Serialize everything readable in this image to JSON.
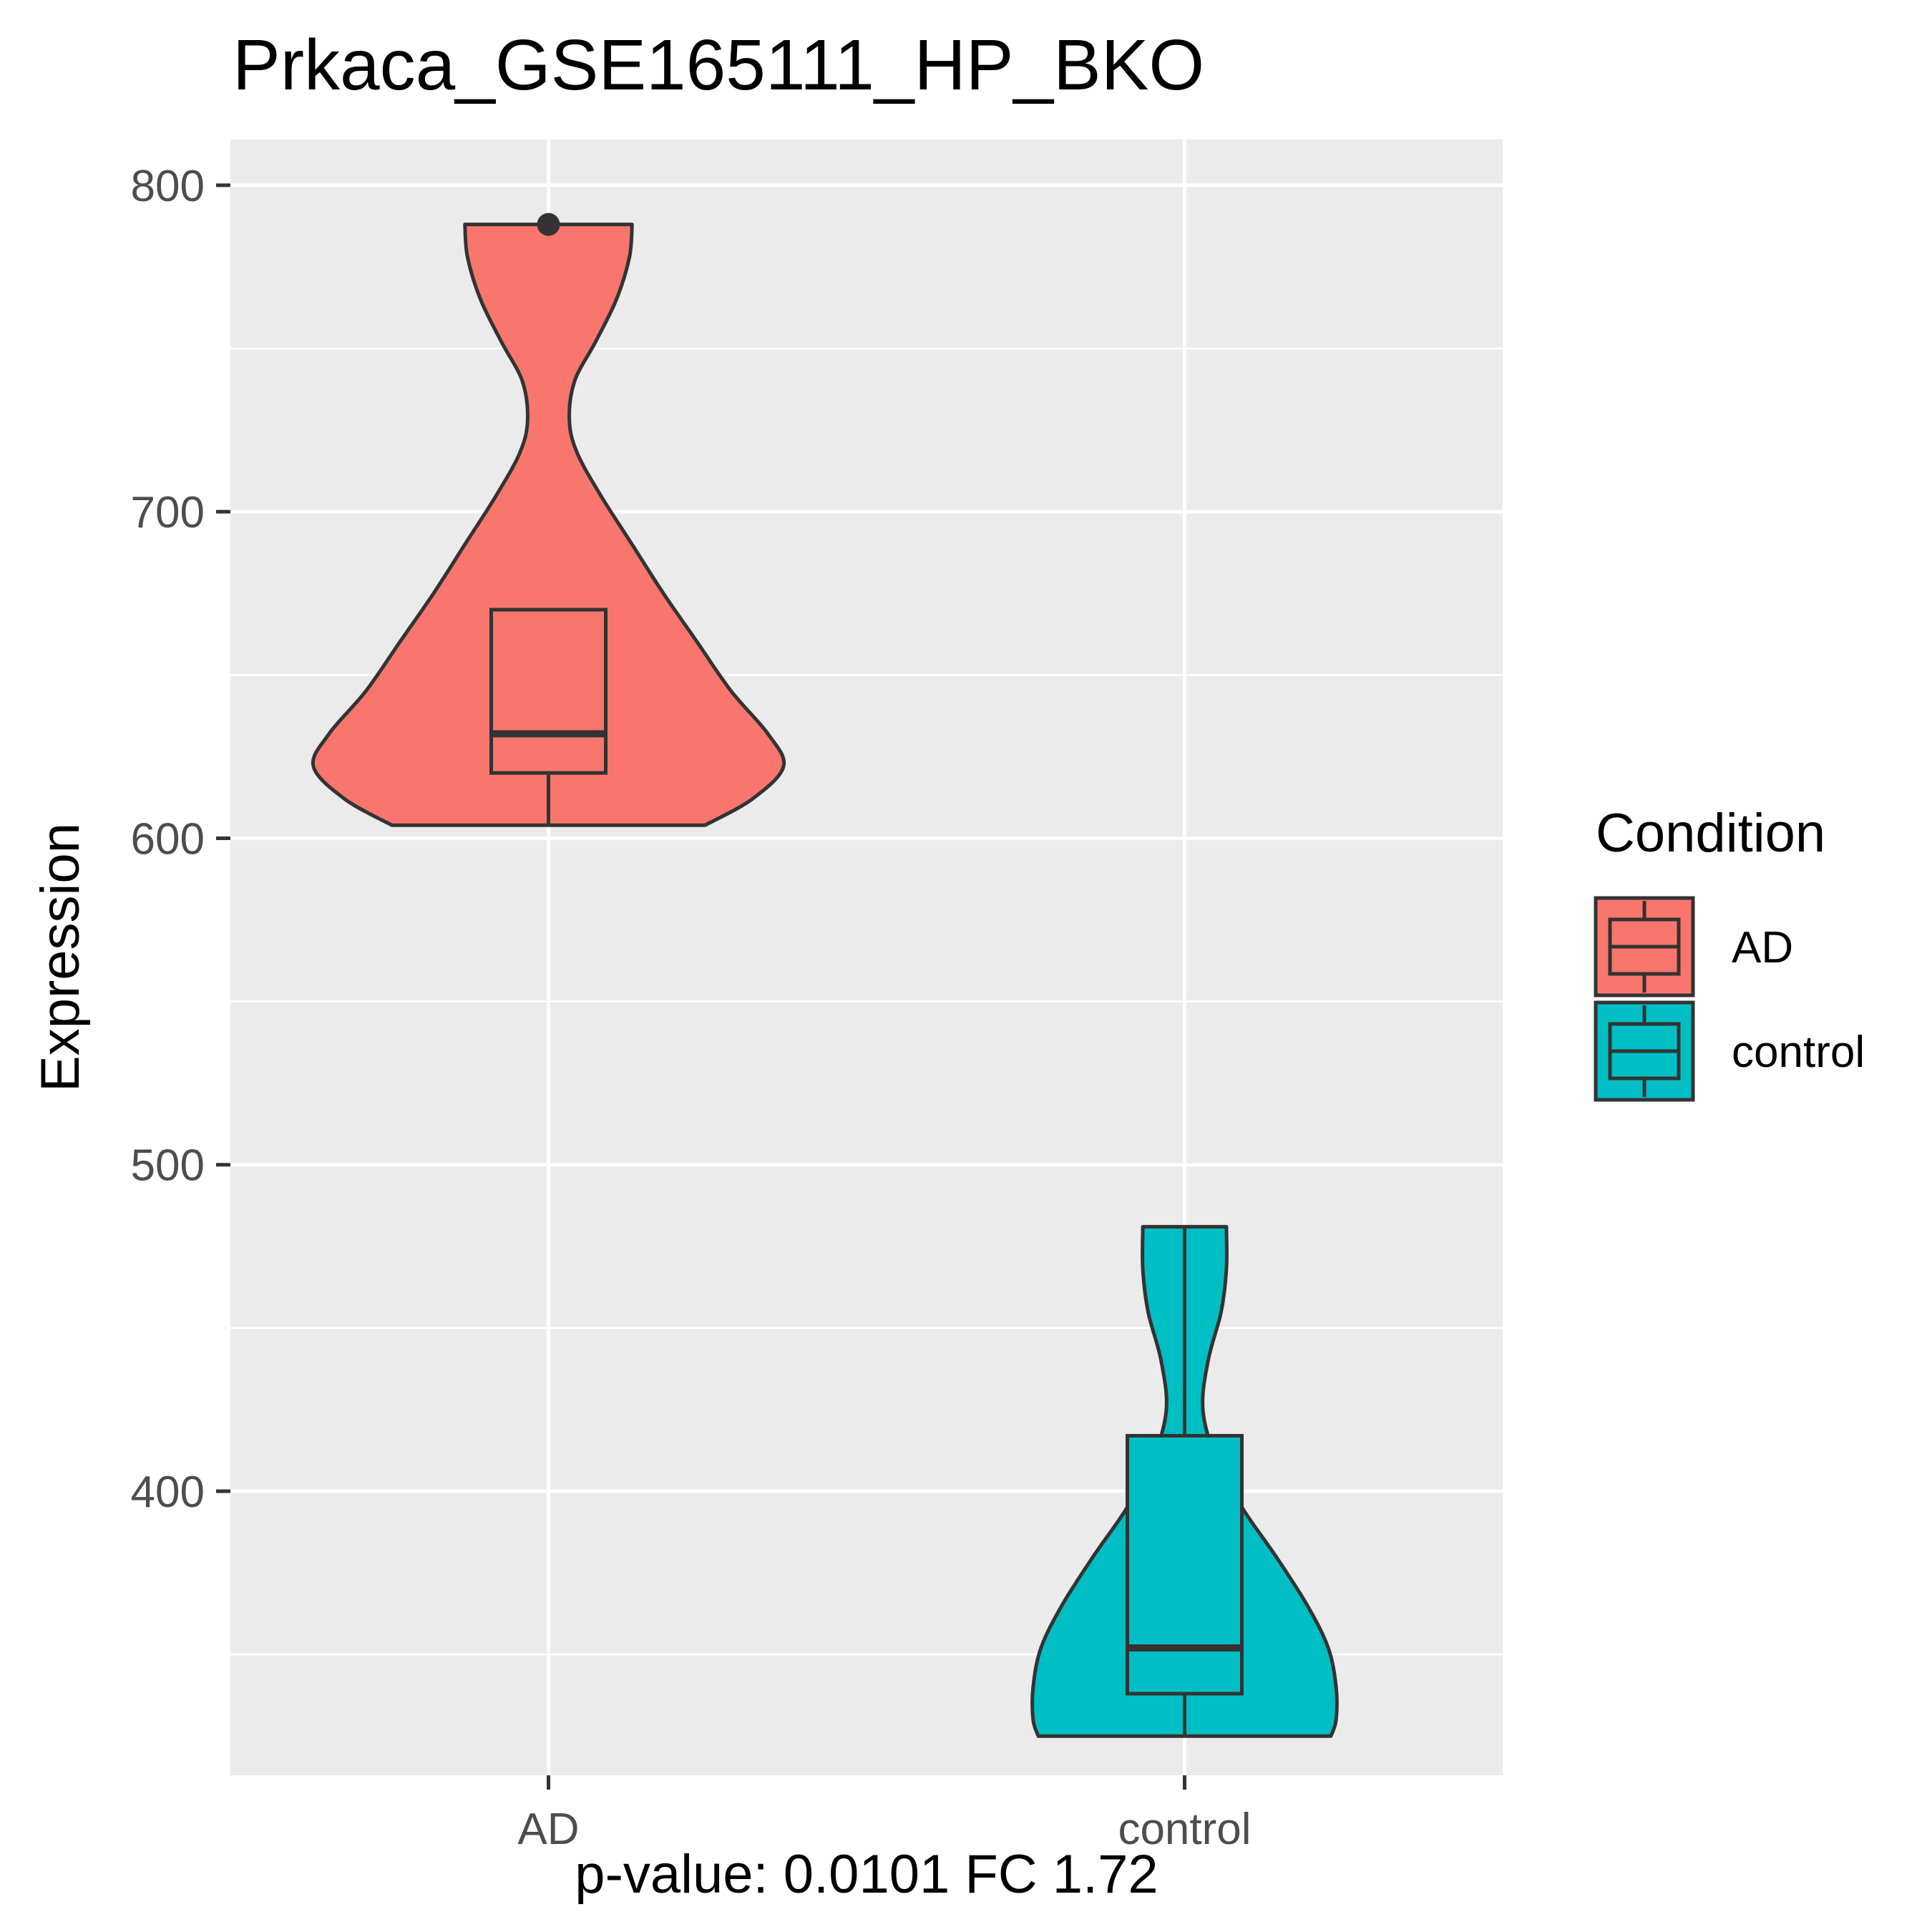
{
  "chart_data": {
    "type": "violin",
    "title": "Prkaca_GSE165111_HP_BKO",
    "xlabel": "p-value: 0.0101 FC 1.72",
    "ylabel": "Expression",
    "categories": [
      "AD",
      "control"
    ],
    "ylim": [
      313,
      814
    ],
    "yticks": [
      400,
      500,
      600,
      700,
      800
    ],
    "grid": true,
    "legend": {
      "title": "Condition",
      "placement": "right",
      "entries": [
        {
          "label": "AD",
          "color": "#F8766D"
        },
        {
          "label": "control",
          "color": "#00BFC4"
        }
      ]
    },
    "series": [
      {
        "category": "AD",
        "color": "#F8766D",
        "min": 604,
        "q1": 620,
        "median": 632,
        "q3": 670,
        "max": 788,
        "whisker_high": 670,
        "outliers": [
          788
        ],
        "density": [
          [
            604,
            0.6
          ],
          [
            612,
            0.78
          ],
          [
            622,
            0.9
          ],
          [
            632,
            0.84
          ],
          [
            645,
            0.7
          ],
          [
            660,
            0.57
          ],
          [
            675,
            0.44
          ],
          [
            690,
            0.32
          ],
          [
            705,
            0.2
          ],
          [
            718,
            0.11
          ],
          [
            728,
            0.08
          ],
          [
            740,
            0.1
          ],
          [
            752,
            0.18
          ],
          [
            765,
            0.26
          ],
          [
            778,
            0.31
          ],
          [
            788,
            0.32
          ]
        ]
      },
      {
        "category": "control",
        "color": "#00BFC4",
        "min": 325,
        "q1": 338,
        "median": 352,
        "q3": 417,
        "max": 481,
        "whisker_high": 481,
        "outliers": [],
        "density": [
          [
            325,
            0.56
          ],
          [
            330,
            0.58
          ],
          [
            340,
            0.58
          ],
          [
            352,
            0.55
          ],
          [
            365,
            0.47
          ],
          [
            380,
            0.35
          ],
          [
            395,
            0.22
          ],
          [
            410,
            0.12
          ],
          [
            425,
            0.07
          ],
          [
            440,
            0.09
          ],
          [
            455,
            0.14
          ],
          [
            468,
            0.16
          ],
          [
            481,
            0.16
          ]
        ]
      }
    ]
  }
}
